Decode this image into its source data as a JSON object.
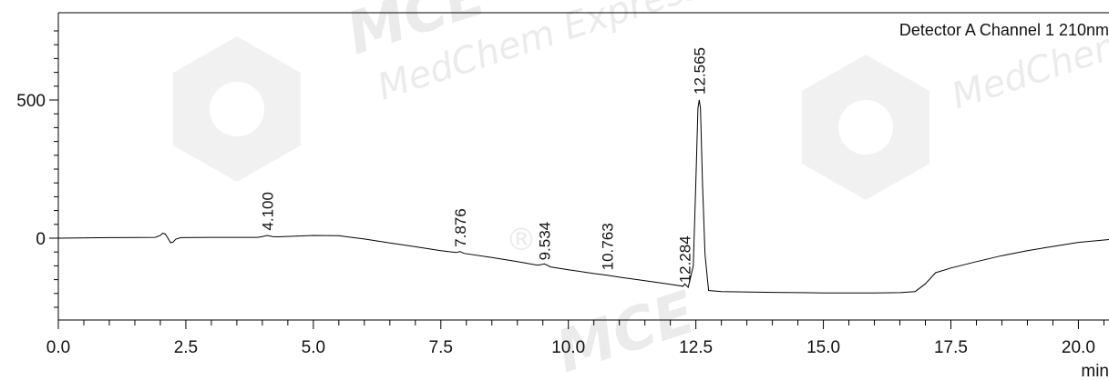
{
  "chart_data": {
    "type": "line",
    "title": "",
    "detector_label": "Detector A Channel 1 210nm",
    "xlabel": "min",
    "ylabel": "",
    "xlim": [
      0,
      20.6
    ],
    "ylim": [
      -300,
      790
    ],
    "x_ticks": [
      0.0,
      2.5,
      5.0,
      7.5,
      10.0,
      12.5,
      15.0,
      17.5,
      20.0
    ],
    "x_tick_labels": [
      "0.0",
      "2.5",
      "5.0",
      "7.5",
      "10.0",
      "12.5",
      "15.0",
      "17.5",
      "20.0"
    ],
    "y_ticks": [
      0,
      500
    ],
    "y_tick_labels": [
      "0",
      "500"
    ],
    "grid": false,
    "peaks": [
      {
        "label": "4.100",
        "x": 4.1,
        "y": 8
      },
      {
        "label": "7.876",
        "x": 7.876,
        "y": -52
      },
      {
        "label": "9.534",
        "x": 9.534,
        "y": -100
      },
      {
        "label": "10.763",
        "x": 10.763,
        "y": -136
      },
      {
        "label": "12.284",
        "x": 12.284,
        "y": -182
      },
      {
        "label": "12.565",
        "x": 12.565,
        "y": 500
      }
    ],
    "series": [
      {
        "x": [
          0,
          1.0,
          1.9,
          2.0,
          2.05,
          2.1,
          2.15,
          2.2,
          2.25,
          2.3,
          2.4,
          3.0,
          3.9,
          4.0,
          4.1,
          4.2,
          4.3,
          5.0,
          5.5,
          6.0,
          6.5,
          7.0,
          7.5,
          7.8,
          7.876,
          7.95,
          8.5,
          9.0,
          9.4,
          9.534,
          9.65,
          10.0,
          10.5,
          10.763,
          11.0,
          11.5,
          12.0,
          12.25,
          12.284,
          12.35,
          12.45,
          12.5,
          12.54,
          12.565,
          12.59,
          12.63,
          12.68,
          12.75,
          13.0,
          14.0,
          15.0,
          16.0,
          16.5,
          16.8,
          17.0,
          17.2,
          17.5,
          18.0,
          18.5,
          19.0,
          19.5,
          20.0,
          20.6
        ],
        "y": [
          0,
          2,
          3,
          10,
          18,
          14,
          0,
          -16,
          -14,
          -4,
          2,
          3,
          3,
          6,
          10,
          6,
          5,
          10,
          9,
          -3,
          -17,
          -31,
          -45,
          -52,
          -48,
          -55,
          -70,
          -85,
          -98,
          -93,
          -104,
          -114,
          -128,
          -134,
          -141,
          -154,
          -167,
          -174,
          -165,
          -178,
          -100,
          200,
          470,
          500,
          470,
          200,
          -60,
          -189,
          -193,
          -196,
          -198,
          -198,
          -197,
          -193,
          -165,
          -125,
          -108,
          -85,
          -63,
          -45,
          -30,
          -15,
          -5
        ]
      }
    ]
  },
  "watermarks": [
    "MedChem Express",
    "MCE",
    "®"
  ]
}
